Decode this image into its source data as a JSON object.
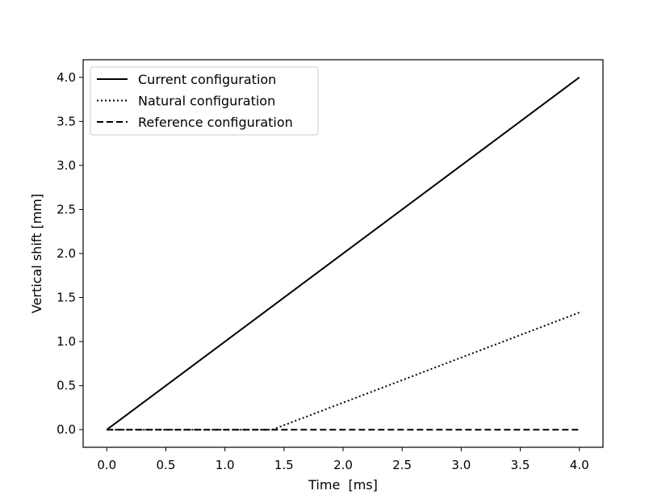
{
  "chart_data": {
    "type": "line",
    "xlabel": "Time  [ms]",
    "ylabel": "Vertical shift [mm]",
    "xlim": [
      -0.2,
      4.2
    ],
    "ylim": [
      -0.2,
      4.2
    ],
    "x_ticks": [
      0.0,
      0.5,
      1.0,
      1.5,
      2.0,
      2.5,
      3.0,
      3.5,
      4.0
    ],
    "x_tick_labels": [
      "0.0",
      "0.5",
      "1.0",
      "1.5",
      "2.0",
      "2.5",
      "3.0",
      "3.5",
      "4.0"
    ],
    "y_ticks": [
      0.0,
      0.5,
      1.0,
      1.5,
      2.0,
      2.5,
      3.0,
      3.5,
      4.0
    ],
    "y_tick_labels": [
      "0.0",
      "0.5",
      "1.0",
      "1.5",
      "2.0",
      "2.5",
      "3.0",
      "3.5",
      "4.0"
    ],
    "grid": false,
    "legend_position": "top-left",
    "series": [
      {
        "name": "Current configuration",
        "style": "solid",
        "color": "#000000",
        "points": [
          [
            0.0,
            0.0
          ],
          [
            4.0,
            4.0
          ]
        ]
      },
      {
        "name": "Natural configuration",
        "style": "dotted",
        "color": "#000000",
        "points": [
          [
            0.0,
            0.0
          ],
          [
            1.4,
            0.0
          ],
          [
            4.0,
            1.33
          ]
        ]
      },
      {
        "name": "Reference configuration",
        "style": "dashed",
        "color": "#000000",
        "points": [
          [
            0.0,
            0.0
          ],
          [
            4.0,
            0.0
          ]
        ]
      }
    ]
  }
}
